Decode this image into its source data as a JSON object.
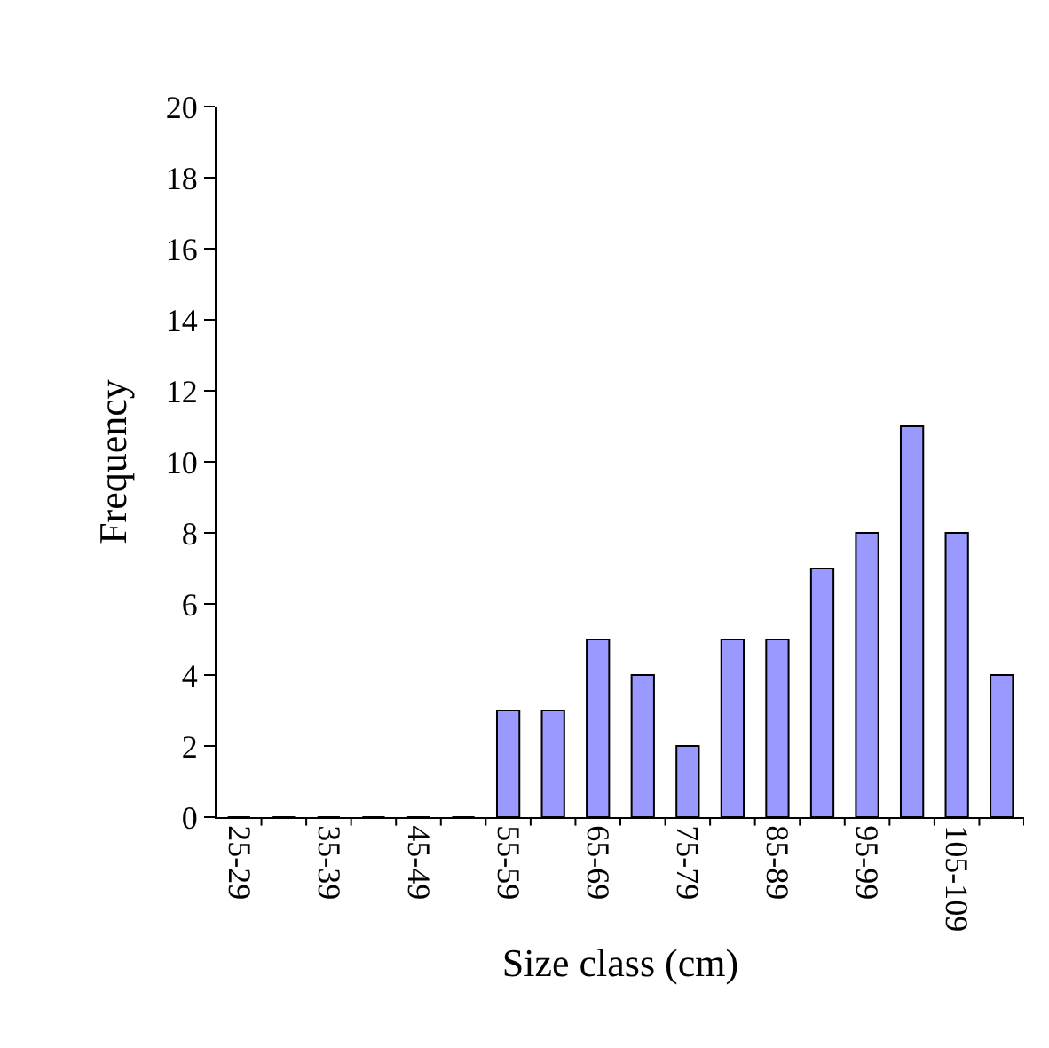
{
  "chart_data": {
    "type": "bar",
    "xlabel": "Size class (cm)",
    "ylabel": "Frequency",
    "categories": [
      "25-29",
      null,
      "35-39",
      null,
      "45-49",
      null,
      "55-59",
      null,
      "65-69",
      null,
      "75-79",
      null,
      "85-89",
      null,
      "95-99",
      null,
      "105-109",
      null
    ],
    "values": [
      0,
      0,
      0,
      0,
      0,
      0,
      3,
      3,
      5,
      4,
      2,
      5,
      5,
      7,
      8,
      11,
      8,
      4
    ],
    "color": "#9999ff",
    "ylim": [
      0,
      20
    ],
    "yticks": [
      0,
      2,
      4,
      6,
      8,
      10,
      12,
      14,
      16,
      18,
      20
    ]
  }
}
